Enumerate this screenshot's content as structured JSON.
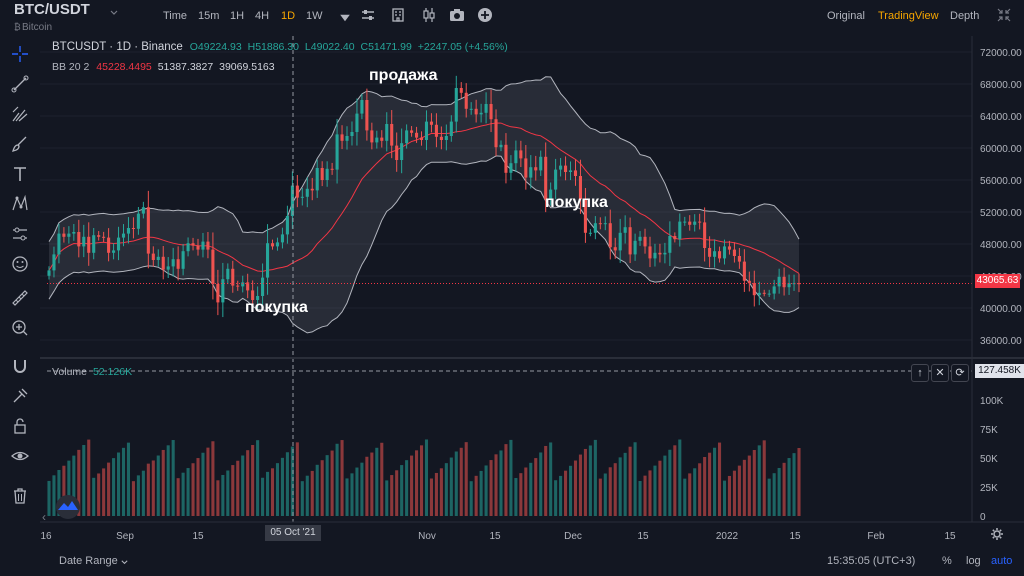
{
  "header": {
    "symbol": "BTC/USDT",
    "name": "Bitcoin",
    "timeframes": [
      "Time",
      "15m",
      "1H",
      "4H",
      "1D",
      "1W"
    ],
    "active_timeframe": "1D",
    "views": [
      "Original",
      "TradingView",
      "Depth"
    ],
    "active_view": "TradingView"
  },
  "legend": {
    "title": "BTCUSDT · 1D · Binance",
    "open": "O49224.93",
    "high": "H51886.30",
    "low": "L49022.40",
    "close": "C51471.99",
    "change": "+2247.05 (+4.56%)",
    "bb_label": "BB 20 2",
    "bb_basis": "45228.4495",
    "bb_upper": "51387.3827",
    "bb_lower": "39069.5163",
    "volume_label": "Volume",
    "volume_value": "52.126K"
  },
  "annotations": {
    "buy1": "покупка",
    "sell": "продажа",
    "buy2": "покупка"
  },
  "price_axis": {
    "ticks": [
      "72000.00",
      "68000.00",
      "64000.00",
      "60000.00",
      "56000.00",
      "52000.00",
      "48000.00",
      "44000.00",
      "40000.00",
      "36000.00"
    ],
    "current_price": "43065.63"
  },
  "volume_axis": {
    "ticks": [
      "100K",
      "75K",
      "50K",
      "25K",
      "0"
    ],
    "crosshair_value": "127.458K"
  },
  "time_axis": {
    "ticks": [
      "16",
      "Sep",
      "15",
      "Oct",
      "Nov",
      "15",
      "Dec",
      "15",
      "2022",
      "15",
      "Feb",
      "15"
    ],
    "crosshair_date": "05 Oct '21"
  },
  "bottom": {
    "date_range": "Date Range",
    "clock": "15:35:05 (UTC+3)",
    "percent": "%",
    "log": "log",
    "auto": "auto"
  },
  "colors": {
    "up": "#26a69a",
    "down": "#ef5350",
    "basis": "#f23645",
    "band": "#b2b5be",
    "background": "#131722",
    "accent": "#f7a600"
  },
  "chart_data": {
    "type": "candlestick",
    "x": [
      "2021-08-18",
      "2021-08-19",
      "2021-08-20",
      "2021-08-21",
      "2021-08-22",
      "2021-08-23",
      "2021-08-24",
      "2021-08-25",
      "2021-08-26",
      "2021-08-27",
      "2021-08-28",
      "2021-08-29",
      "2021-08-30",
      "2021-08-31",
      "2021-09-01",
      "2021-09-02",
      "2021-09-03",
      "2021-09-04",
      "2021-09-05",
      "2021-09-06",
      "2021-09-07",
      "2021-09-08",
      "2021-09-09",
      "2021-09-10",
      "2021-09-11",
      "2021-09-12",
      "2021-09-13",
      "2021-09-14",
      "2021-09-15",
      "2021-09-16",
      "2021-09-17",
      "2021-09-18",
      "2021-09-19",
      "2021-09-20",
      "2021-09-21",
      "2021-09-22",
      "2021-09-23",
      "2021-09-24",
      "2021-09-25",
      "2021-09-26",
      "2021-09-27",
      "2021-09-28",
      "2021-09-29",
      "2021-09-30",
      "2021-10-01",
      "2021-10-02",
      "2021-10-03",
      "2021-10-04",
      "2021-10-05",
      "2021-10-06",
      "2021-10-07",
      "2021-10-08",
      "2021-10-09",
      "2021-10-10",
      "2021-10-11",
      "2021-10-12",
      "2021-10-13",
      "2021-10-14",
      "2021-10-15",
      "2021-10-16",
      "2021-10-17",
      "2021-10-18",
      "2021-10-19",
      "2021-10-20",
      "2021-10-21",
      "2021-10-22",
      "2021-10-23",
      "2021-10-24",
      "2021-10-25",
      "2021-10-26",
      "2021-10-27",
      "2021-10-28",
      "2021-10-29",
      "2021-10-30",
      "2021-10-31",
      "2021-11-01",
      "2021-11-02",
      "2021-11-03",
      "2021-11-04",
      "2021-11-05",
      "2021-11-06",
      "2021-11-07",
      "2021-11-08",
      "2021-11-09",
      "2021-11-10",
      "2021-11-11",
      "2021-11-12",
      "2021-11-13",
      "2021-11-14",
      "2021-11-15",
      "2021-11-16",
      "2021-11-17",
      "2021-11-18",
      "2021-11-19",
      "2021-11-20",
      "2021-11-21",
      "2021-11-22",
      "2021-11-23",
      "2021-11-24",
      "2021-11-25",
      "2021-11-26",
      "2021-11-27",
      "2021-11-28",
      "2021-11-29",
      "2021-11-30",
      "2021-12-01",
      "2021-12-02",
      "2021-12-03",
      "2021-12-04",
      "2021-12-05",
      "2021-12-06",
      "2021-12-07",
      "2021-12-08",
      "2021-12-09",
      "2021-12-10",
      "2021-12-11",
      "2021-12-12",
      "2021-12-13",
      "2021-12-14",
      "2021-12-15",
      "2021-12-16",
      "2021-12-17",
      "2021-12-18",
      "2021-12-19",
      "2021-12-20",
      "2021-12-21",
      "2021-12-22",
      "2021-12-23",
      "2021-12-24",
      "2021-12-25",
      "2021-12-26",
      "2021-12-27",
      "2021-12-28",
      "2021-12-29",
      "2021-12-30",
      "2021-12-31",
      "2022-01-01",
      "2022-01-02",
      "2022-01-03",
      "2022-01-04",
      "2022-01-05",
      "2022-01-06",
      "2022-01-07",
      "2022-01-08",
      "2022-01-09",
      "2022-01-10",
      "2022-01-11",
      "2022-01-12",
      "2022-01-13",
      "2022-01-14",
      "2022-01-15",
      "2022-01-16"
    ],
    "close": [
      44700,
      46700,
      49300,
      48900,
      49300,
      49500,
      47700,
      48900,
      46900,
      49100,
      48900,
      48800,
      46900,
      47200,
      48800,
      49300,
      50000,
      49900,
      51800,
      52600,
      46800,
      46000,
      46400,
      44800,
      45200,
      46100,
      44900,
      47100,
      48100,
      47800,
      47300,
      48300,
      47300,
      43000,
      40700,
      43600,
      44900,
      42800,
      42700,
      43200,
      42200,
      41000,
      41500,
      43800,
      48100,
      47700,
      48200,
      49200,
      51500,
      55300,
      53800,
      53900,
      54900,
      54700,
      57500,
      56000,
      57400,
      57300,
      61700,
      60900,
      61500,
      62000,
      64300,
      66000,
      62200,
      60700,
      61300,
      60900,
      63000,
      60300,
      58500,
      60600,
      62200,
      61900,
      61300,
      61000,
      63300,
      62900,
      61400,
      61000,
      61500,
      63300,
      67500,
      66900,
      64900,
      64900,
      64200,
      64400,
      65500,
      63600,
      60100,
      60400,
      56900,
      58100,
      59700,
      58700,
      56300,
      57600,
      57200,
      58900,
      53600,
      54800,
      57300,
      57800,
      57000,
      57200,
      56500,
      53600,
      49400,
      49400,
      50600,
      50500,
      50600,
      47600,
      47200,
      49400,
      50100,
      46700,
      48400,
      48900,
      47700,
      46200,
      46900,
      46700,
      46900,
      49000,
      48600,
      50800,
      50800,
      50400,
      50800,
      50700,
      47500,
      46400,
      47100,
      46200,
      47700,
      47300,
      46500,
      45800,
      43400,
      43100,
      41600,
      41900,
      41800,
      41800,
      42700,
      43900,
      42600,
      43100,
      43100,
      43065.63
    ],
    "ylim": [
      34000,
      74000
    ],
    "bollinger": {
      "period": 20,
      "stddev": 2
    },
    "volume_ylim": [
      0,
      137000
    ],
    "volume_ticks": [
      0,
      25000,
      50000,
      75000,
      100000
    ]
  }
}
